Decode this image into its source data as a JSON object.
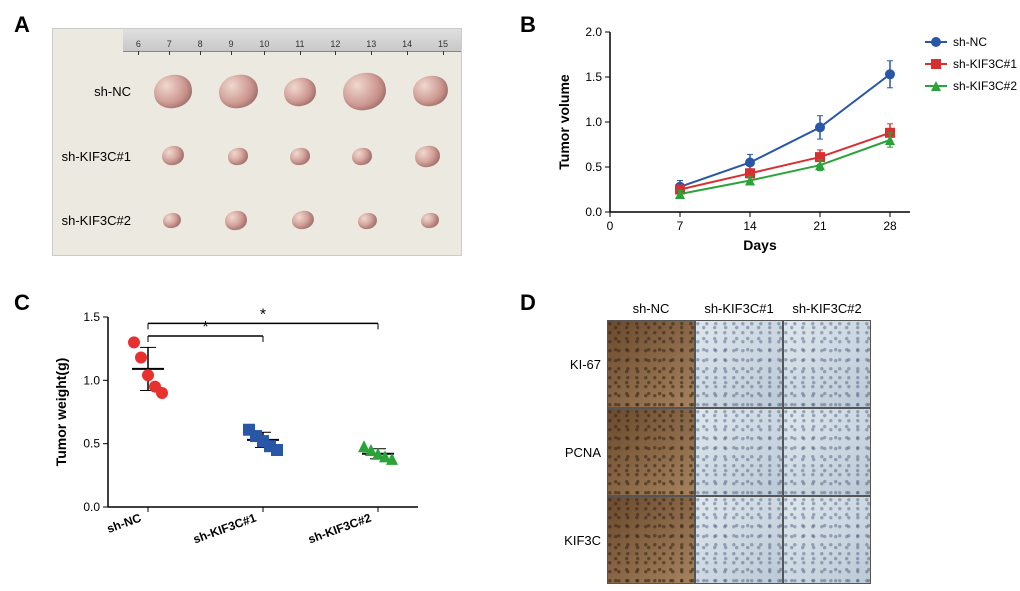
{
  "panel_label_fontsize": 22,
  "panel_label_color": "#000000",
  "panels": {
    "A": {
      "label": "A",
      "ruler_values": [
        "6",
        "7",
        "8",
        "9",
        "10",
        "11",
        "12",
        "13",
        "14",
        "15"
      ],
      "row_labels": [
        "sh-NC",
        "sh-KIF3C#1",
        "sh-KIF3C#2"
      ],
      "rows": [
        {
          "n": 5,
          "size": 38
        },
        {
          "n": 5,
          "size": 22
        },
        {
          "n": 5,
          "size": 20
        }
      ],
      "photo_bg": "#ece9e1"
    },
    "B": {
      "label": "B",
      "type": "line",
      "x": [
        7,
        14,
        21,
        28
      ],
      "xlabel": "Days",
      "ylabel": "Tumor volume",
      "xlim": [
        0,
        30
      ],
      "ylim": [
        0,
        2.0
      ],
      "yticks": [
        0,
        0.5,
        1.0,
        1.5,
        2.0
      ],
      "xticks": [
        0,
        7,
        14,
        21,
        28
      ],
      "label_fontsize": 14,
      "tick_fontsize": 12,
      "series": [
        {
          "name": "sh-NC",
          "color": "#2956a6",
          "marker": "circle",
          "y": [
            0.28,
            0.55,
            0.94,
            1.53
          ],
          "err": [
            0.07,
            0.09,
            0.13,
            0.15
          ]
        },
        {
          "name": "sh-KIF3C#1",
          "color": "#d73030",
          "marker": "square",
          "y": [
            0.25,
            0.43,
            0.61,
            0.88
          ],
          "err": [
            0.05,
            0.05,
            0.08,
            0.1
          ]
        },
        {
          "name": "sh-KIF3C#2",
          "color": "#2aa43a",
          "marker": "triangle",
          "y": [
            0.2,
            0.35,
            0.52,
            0.8
          ],
          "err": [
            0.04,
            0.05,
            0.06,
            0.08
          ]
        }
      ],
      "line_width": 2,
      "marker_size": 5,
      "legend_position": "right",
      "background_color": "#ffffff"
    },
    "C": {
      "label": "C",
      "type": "scatter",
      "ylabel": "Tumor weight(g)",
      "ylim": [
        0,
        1.5
      ],
      "yticks": [
        0,
        0.5,
        1.0,
        1.5
      ],
      "label_fontsize": 14,
      "tick_fontsize": 12,
      "marker_size": 6,
      "groups": [
        {
          "name": "sh-NC",
          "color": "#e8312f",
          "x": 0,
          "values": [
            1.3,
            1.18,
            1.04,
            0.95,
            0.9
          ],
          "mean": 1.09,
          "sd": 0.17
        },
        {
          "name": "sh-KIF3C#1",
          "color": "#2956a6",
          "x": 1,
          "values": [
            0.61,
            0.56,
            0.52,
            0.48,
            0.45
          ],
          "mean": 0.53,
          "sd": 0.06
        },
        {
          "name": "sh-KIF3C#2",
          "color": "#2aa43a",
          "x": 2,
          "values": [
            0.48,
            0.45,
            0.42,
            0.4,
            0.38
          ],
          "mean": 0.42,
          "sd": 0.04
        }
      ],
      "sig_bars": [
        {
          "from": 0,
          "to": 1,
          "y": 1.35,
          "label": "*"
        },
        {
          "from": 0,
          "to": 2,
          "y": 1.45,
          "label": "*"
        }
      ],
      "sig_fontsize": 16
    },
    "D": {
      "label": "D",
      "col_headers": [
        "sh-NC",
        "sh-KIF3C#1",
        "sh-KIF3C#2"
      ],
      "row_headers": [
        "KI-67",
        "PCNA",
        "KIF3C"
      ],
      "cell_size": 88,
      "row_header_width": 52,
      "col_header_height": 22,
      "intensity": [
        [
          0.85,
          0.35,
          0.3
        ],
        [
          0.8,
          0.3,
          0.28
        ],
        [
          0.78,
          0.28,
          0.25
        ]
      ],
      "high_color_start": "#6b4a2e",
      "high_color_end": "#a5835e",
      "low_color_start": "#dfe7ee",
      "low_color_end": "#bcc9d6",
      "grain_color_hi": "rgba(60,40,25,0.6)",
      "grain_color_lo": "rgba(70,90,120,0.45)"
    }
  }
}
